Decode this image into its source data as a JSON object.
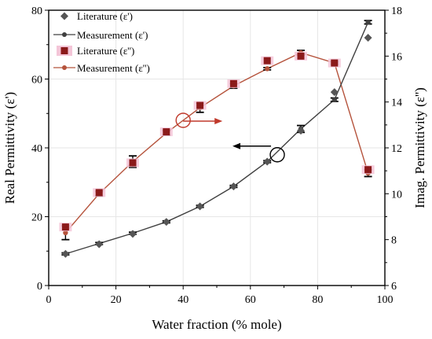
{
  "chart_data": {
    "type": "line",
    "xlabel": "Water fraction (% mole)",
    "ylabel_left": "Real Permittivity (ε')",
    "ylabel_right": "Imag. Permittivity (ε'')",
    "xlim": [
      0,
      100
    ],
    "ylim_left": [
      0,
      80
    ],
    "ylim_right": [
      6,
      18
    ],
    "xticks": [
      "0",
      "20",
      "40",
      "60",
      "80",
      "100"
    ],
    "yticks_left": [
      "0",
      "20",
      "40",
      "60",
      "80"
    ],
    "yticks_right": [
      "6",
      "8",
      "10",
      "12",
      "14",
      "16",
      "18"
    ],
    "grid": true,
    "legend_position": "top-left",
    "series": [
      {
        "name": "Literature (ε')",
        "axis": "left",
        "style": "marker",
        "marker": "diamond",
        "color": "#555555",
        "x": [
          5,
          15,
          25,
          35,
          45,
          55,
          65,
          75,
          85,
          95
        ],
        "y": [
          9.2,
          12.0,
          15.0,
          18.5,
          23.0,
          28.8,
          36.0,
          45.0,
          56.2,
          72.0
        ]
      },
      {
        "name": "Measurement (ε')",
        "axis": "left",
        "style": "line-marker",
        "marker": "circle",
        "color": "#404040",
        "x": [
          5,
          15,
          25,
          35,
          45,
          55,
          65,
          75,
          85,
          95
        ],
        "y": [
          9.2,
          12.2,
          15.2,
          18.5,
          23.0,
          28.8,
          36.0,
          45.5,
          54.0,
          76.5
        ],
        "errors": [
          0.3,
          0.3,
          0.3,
          0.3,
          0.3,
          0.3,
          0.3,
          1.0,
          0.5,
          0.5
        ]
      },
      {
        "name": "Literature (ε'')",
        "axis": "right",
        "style": "marker",
        "marker": "square",
        "color": "#8B1A1A",
        "x": [
          5,
          15,
          25,
          35,
          45,
          55,
          65,
          75,
          85,
          95
        ],
        "y": [
          8.55,
          10.05,
          11.35,
          12.7,
          13.85,
          14.8,
          15.8,
          16.0,
          15.7,
          11.05
        ]
      },
      {
        "name": "Measurement (ε'')",
        "axis": "right",
        "style": "line-marker",
        "marker": "circle",
        "color": "#B5533C",
        "x": [
          5,
          15,
          25,
          35,
          45,
          55,
          65,
          75,
          85,
          95
        ],
        "y": [
          8.3,
          10.0,
          11.4,
          12.65,
          13.75,
          14.7,
          15.45,
          16.15,
          15.7,
          10.9
        ],
        "errors": [
          0.3,
          0.1,
          0.25,
          0.1,
          0.2,
          0.1,
          0.05,
          0.1,
          0.05,
          0.15
        ]
      }
    ],
    "annotations": [
      {
        "type": "circle-arrow",
        "at_x": 40,
        "at_y_right": 13.2,
        "direction": "right",
        "color": "#C0392B"
      },
      {
        "type": "circle-arrow",
        "at_x": 68,
        "at_y_left": 38,
        "direction": "left",
        "color": "#000000"
      }
    ]
  }
}
